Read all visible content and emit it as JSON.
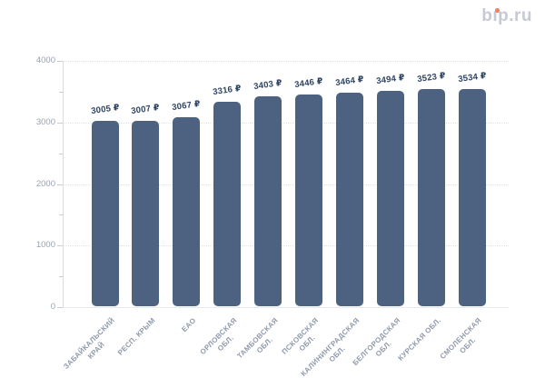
{
  "page": {
    "background": "#ffffff"
  },
  "header": {
    "logo_text": "bip.ru",
    "logo_color": "#c6cad6",
    "logo_dot_color": "#ef8266"
  },
  "chart_data": {
    "type": "bar",
    "title": "",
    "categories": [
      "ЗАБАЙКАЛЬСКИЙ\nКРАЙ",
      "РЕСП. КРЫМ",
      "ЕАО",
      "ОРЛОВСКАЯ\nОБЛ.",
      "ТАМБОВСКАЯ\nОБЛ.",
      "ПСКОВСКАЯ\nОБЛ.",
      "КАЛИНИНГРАДСКАЯ\nОБЛ.",
      "БЕЛГОРОДСКАЯ\nОБЛ.",
      "КУРСКАЯ ОБЛ.",
      "СМОЛЕНСКАЯ\nОБЛ."
    ],
    "values": [
      3005,
      3007,
      3067,
      3316,
      3403,
      3446,
      3464,
      3494,
      3523,
      3534
    ],
    "currency": "₽",
    "xlabel": "",
    "ylabel": "",
    "ylim": [
      0,
      4000
    ],
    "yticks": [
      0,
      1000,
      2000,
      3000,
      4000
    ],
    "minor_tick_step": 500,
    "grid": "horizontal dotted lines at major y ticks",
    "legend": "none",
    "bar_color": "#4d6280",
    "value_label_color": "#2e4463",
    "axis_label_color": "#99a3b0"
  }
}
